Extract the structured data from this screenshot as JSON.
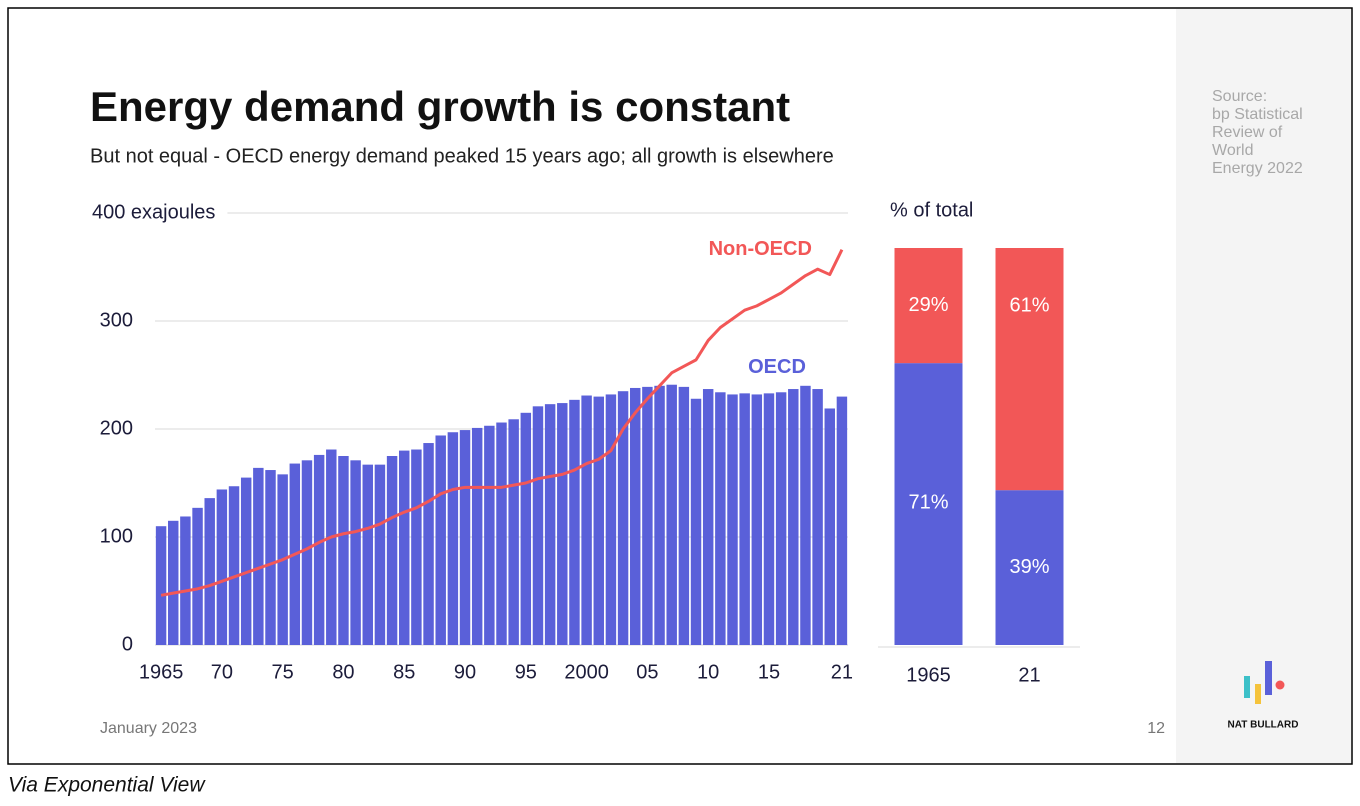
{
  "title": "Energy demand growth is constant",
  "subtitle": "But not equal - OECD energy demand peaked 15 years ago; all growth is elsewhere",
  "source": [
    "Source:",
    "bp Statistical",
    "Review of",
    "World",
    "Energy 2022"
  ],
  "date": "January 2023",
  "page_number": "12",
  "brand": "NAT BULLARD",
  "caption": "Via Exponential View",
  "chart_data": [
    {
      "type": "bar",
      "x": [
        1965,
        1966,
        1967,
        1968,
        1969,
        1970,
        1971,
        1972,
        1973,
        1974,
        1975,
        1976,
        1977,
        1978,
        1979,
        1980,
        1981,
        1982,
        1983,
        1984,
        1985,
        1986,
        1987,
        1988,
        1989,
        1990,
        1991,
        1992,
        1993,
        1994,
        1995,
        1996,
        1997,
        1998,
        1999,
        2000,
        2001,
        2002,
        2003,
        2004,
        2005,
        2006,
        2007,
        2008,
        2009,
        2010,
        2011,
        2012,
        2013,
        2014,
        2015,
        2016,
        2017,
        2018,
        2019,
        2020,
        2021
      ],
      "series": [
        {
          "name": "OECD",
          "type": "bar",
          "color": "#5a60d9",
          "values": [
            110,
            115,
            119,
            127,
            136,
            144,
            147,
            155,
            164,
            162,
            158,
            168,
            171,
            176,
            181,
            175,
            171,
            167,
            167,
            175,
            180,
            181,
            187,
            194,
            197,
            199,
            201,
            203,
            206,
            209,
            215,
            221,
            223,
            224,
            227,
            231,
            230,
            232,
            235,
            238,
            239,
            240,
            241,
            239,
            228,
            237,
            234,
            232,
            233,
            232,
            233,
            234,
            237,
            240,
            237,
            219,
            230
          ]
        },
        {
          "name": "Non-OECD",
          "type": "line",
          "color": "#f25757",
          "values": [
            46,
            48,
            50,
            52,
            55,
            59,
            63,
            67,
            71,
            75,
            79,
            84,
            89,
            95,
            100,
            103,
            105,
            108,
            112,
            118,
            123,
            127,
            133,
            140,
            144,
            146,
            146,
            146,
            146,
            148,
            150,
            154,
            156,
            158,
            162,
            168,
            172,
            180,
            200,
            215,
            228,
            240,
            252,
            258,
            264,
            282,
            294,
            302,
            310,
            314,
            320,
            326,
            334,
            342,
            348,
            343,
            366
          ]
        }
      ],
      "xlim": [
        1964.5,
        2021.5
      ],
      "xticks": [
        1965,
        {
          "value": 1970,
          "label": "70"
        },
        {
          "value": 1975,
          "label": "75"
        },
        {
          "value": 1980,
          "label": "80"
        },
        {
          "value": 1985,
          "label": "85"
        },
        {
          "value": 1990,
          "label": "90"
        },
        {
          "value": 1995,
          "label": "95"
        },
        2000,
        {
          "value": 2005,
          "label": "05"
        },
        {
          "value": 2010,
          "label": "10"
        },
        {
          "value": 2015,
          "label": "15"
        },
        {
          "value": 2021,
          "label": "21"
        }
      ],
      "ylim": [
        0,
        400
      ],
      "yticks": [
        0,
        100,
        200,
        300,
        {
          "value": 400,
          "label": "400 exajoules"
        }
      ],
      "grid": true
    },
    {
      "type": "stacked_bar",
      "title": "% of total",
      "categories": [
        "1965",
        "21"
      ],
      "series": [
        {
          "color": "#5a60d9",
          "values": [
            71,
            39
          ],
          "value_labels": [
            "71%",
            "39%"
          ]
        },
        {
          "color": "#f25757",
          "values": [
            29,
            61
          ],
          "value_labels": [
            "29%",
            "61%"
          ]
        }
      ],
      "ylim": [
        0,
        100
      ]
    }
  ]
}
